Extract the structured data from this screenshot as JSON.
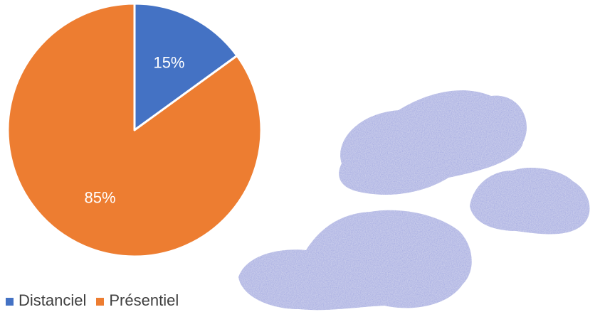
{
  "chart_data": {
    "type": "pie",
    "categories": [
      "Distanciel",
      "Présentiel"
    ],
    "values": [
      15,
      85
    ],
    "labels": [
      "15%",
      "85%"
    ],
    "colors": [
      "#4472C4",
      "#ED7D31"
    ],
    "legend_position": "bottom-left",
    "start_angle": "top",
    "direction": "clockwise"
  },
  "legend": {
    "items": [
      {
        "label": "Distanciel",
        "color": "#4472C4"
      },
      {
        "label": "Présentiel",
        "color": "#ED7D31"
      }
    ]
  },
  "decoration": {
    "icon": "watercolor-clouds-icon",
    "color": "#c7cbea"
  }
}
